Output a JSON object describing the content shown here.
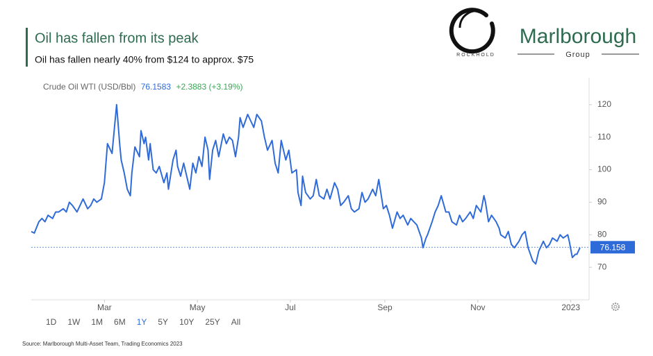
{
  "header": {
    "title": "Oil has fallen from its peak",
    "subtitle": "Oil has fallen nearly 40% from $124 to approx. $75"
  },
  "logos": {
    "rockhold": "ROCKHOLD",
    "marlborough": "Marlborough",
    "group": "Group"
  },
  "chart_data": {
    "type": "line",
    "instrument": "Crude Oil WTI (USD/Bbl)",
    "price": "76.1583",
    "change": "+2.3883 (+3.19%)",
    "current_value": 76.158,
    "x": [
      0,
      2,
      5,
      7,
      9,
      11,
      14,
      16,
      18,
      21,
      23,
      25,
      27,
      30,
      32,
      34,
      37,
      39,
      41,
      43,
      46,
      48,
      50,
      53,
      55,
      56,
      58,
      59,
      61,
      63,
      65,
      66,
      68,
      71,
      72,
      74,
      75,
      77,
      78,
      80,
      82,
      84,
      87,
      89,
      90,
      93,
      95,
      96,
      98,
      100,
      103,
      104,
      106,
      108,
      110,
      112,
      114,
      116,
      117,
      119,
      121,
      123,
      126,
      128,
      130,
      132,
      134,
      136,
      137,
      139,
      142,
      144,
      146,
      148,
      151,
      153,
      155,
      158,
      160,
      162,
      164,
      167,
      169,
      171,
      174,
      175,
      177,
      178,
      180,
      183,
      185,
      187,
      189,
      192,
      194,
      196,
      199,
      201,
      203,
      205,
      208,
      210,
      212,
      215,
      217,
      219,
      221,
      224,
      226,
      228,
      231,
      233,
      235,
      237,
      240,
      242,
      244,
      247,
      249,
      251,
      253,
      256,
      257,
      259,
      260,
      263,
      265,
      267,
      269,
      272,
      274,
      276,
      279,
      281,
      283,
      285,
      288,
      290,
      292,
      295,
      297,
      298,
      300,
      302,
      305,
      307,
      308,
      311,
      313,
      315,
      317,
      320,
      322,
      324,
      326,
      329,
      331,
      333,
      336,
      338,
      340,
      342,
      345,
      347,
      349,
      352,
      353,
      355,
      357,
      358,
      360
    ],
    "series": [
      {
        "name": "Crude Oil WTI (USD/Bbl)",
        "color": "#2f6bd8",
        "values": [
          81,
          80.5,
          84,
          85,
          84,
          86,
          85,
          87,
          87,
          88,
          87,
          90,
          89,
          87,
          89,
          91,
          88,
          89,
          91,
          90,
          91,
          96,
          108,
          105,
          115,
          120,
          108,
          103,
          99,
          94,
          92,
          99,
          107,
          104,
          112,
          108,
          110,
          103,
          108,
          100,
          99,
          101,
          96,
          99,
          94,
          103,
          106,
          101,
          98,
          102,
          96,
          94,
          102,
          99,
          104,
          101,
          110,
          106,
          97,
          106,
          109,
          104,
          111,
          108,
          110,
          109,
          104,
          110,
          116,
          113,
          117,
          115,
          113,
          117,
          115,
          110,
          106,
          109,
          102,
          99,
          109,
          103,
          106,
          99,
          100,
          93,
          89,
          98,
          93,
          91,
          92,
          97,
          92,
          91,
          94,
          91,
          96,
          94,
          89,
          90,
          92,
          88,
          87,
          88,
          93,
          90,
          91,
          94,
          92,
          97,
          88,
          89,
          86,
          82,
          87,
          85,
          86,
          83,
          85,
          84,
          83,
          79,
          76,
          79,
          80,
          84,
          87,
          89,
          92,
          87,
          87,
          84,
          83,
          86,
          84,
          85,
          87,
          85,
          89,
          87,
          92,
          90,
          84,
          86,
          84,
          82,
          80,
          79,
          81,
          77,
          76,
          78,
          80,
          81,
          76,
          72,
          71,
          75,
          78,
          76,
          77,
          79,
          78,
          80,
          79,
          80,
          78,
          73,
          74,
          74,
          76
        ]
      }
    ],
    "xlim": [
      0,
      366
    ],
    "xticks": [
      {
        "value": 48,
        "label": "Mar"
      },
      {
        "value": 109,
        "label": "May"
      },
      {
        "value": 170,
        "label": "Jul"
      },
      {
        "value": 232,
        "label": "Sep"
      },
      {
        "value": 293,
        "label": "Nov"
      },
      {
        "value": 354,
        "label": "2023"
      }
    ],
    "ylim": [
      60,
      127
    ],
    "yticks": [
      70,
      80,
      90,
      100,
      110,
      120
    ],
    "grid": false
  },
  "range_buttons": [
    "1D",
    "1W",
    "1M",
    "6M",
    "1Y",
    "5Y",
    "10Y",
    "25Y",
    "All"
  ],
  "active_range": 4,
  "source": "Source: Marlborough Multi-Asset Team, Trading Economics 2023"
}
